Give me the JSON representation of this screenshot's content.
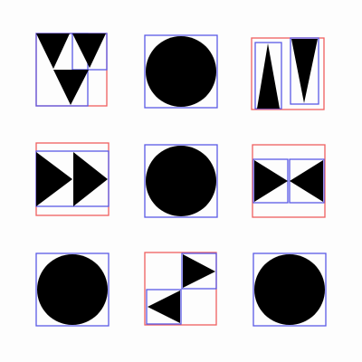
{
  "colors": {
    "background": "#fdfdfd",
    "shape_fill": "#000000",
    "outer_box": "#f06060",
    "inner_box": "#5a5ae6"
  },
  "grid": {
    "rows": 3,
    "cols": 3,
    "cells": [
      {
        "name": "cell-r1-c1",
        "outer_box": true,
        "content": "three-down-triangles",
        "shapes": [
          {
            "type": "triangle",
            "direction": "down"
          },
          {
            "type": "triangle",
            "direction": "down"
          },
          {
            "type": "triangle",
            "direction": "down"
          }
        ]
      },
      {
        "name": "cell-r1-c2",
        "outer_box": false,
        "content": "circle",
        "shapes": [
          {
            "type": "circle"
          }
        ]
      },
      {
        "name": "cell-r1-c3",
        "outer_box": true,
        "content": "two-tall-triangles",
        "shapes": [
          {
            "type": "triangle",
            "direction": "up"
          },
          {
            "type": "triangle",
            "direction": "down"
          }
        ]
      },
      {
        "name": "cell-r2-c1",
        "outer_box": true,
        "content": "two-right-triangles",
        "shapes": [
          {
            "type": "triangle",
            "direction": "right"
          },
          {
            "type": "triangle",
            "direction": "right"
          }
        ]
      },
      {
        "name": "cell-r2-c2",
        "outer_box": false,
        "content": "circle",
        "shapes": [
          {
            "type": "circle"
          }
        ]
      },
      {
        "name": "cell-r2-c3",
        "outer_box": true,
        "content": "bowtie-triangles",
        "shapes": [
          {
            "type": "triangle",
            "direction": "right"
          },
          {
            "type": "triangle",
            "direction": "left"
          }
        ]
      },
      {
        "name": "cell-r3-c1",
        "outer_box": false,
        "content": "circle",
        "shapes": [
          {
            "type": "circle"
          }
        ]
      },
      {
        "name": "cell-r3-c2",
        "outer_box": true,
        "content": "diagonal-triangles",
        "shapes": [
          {
            "type": "triangle",
            "direction": "right"
          },
          {
            "type": "triangle",
            "direction": "left"
          }
        ]
      },
      {
        "name": "cell-r3-c3",
        "outer_box": false,
        "content": "circle",
        "shapes": [
          {
            "type": "circle"
          }
        ]
      }
    ]
  }
}
